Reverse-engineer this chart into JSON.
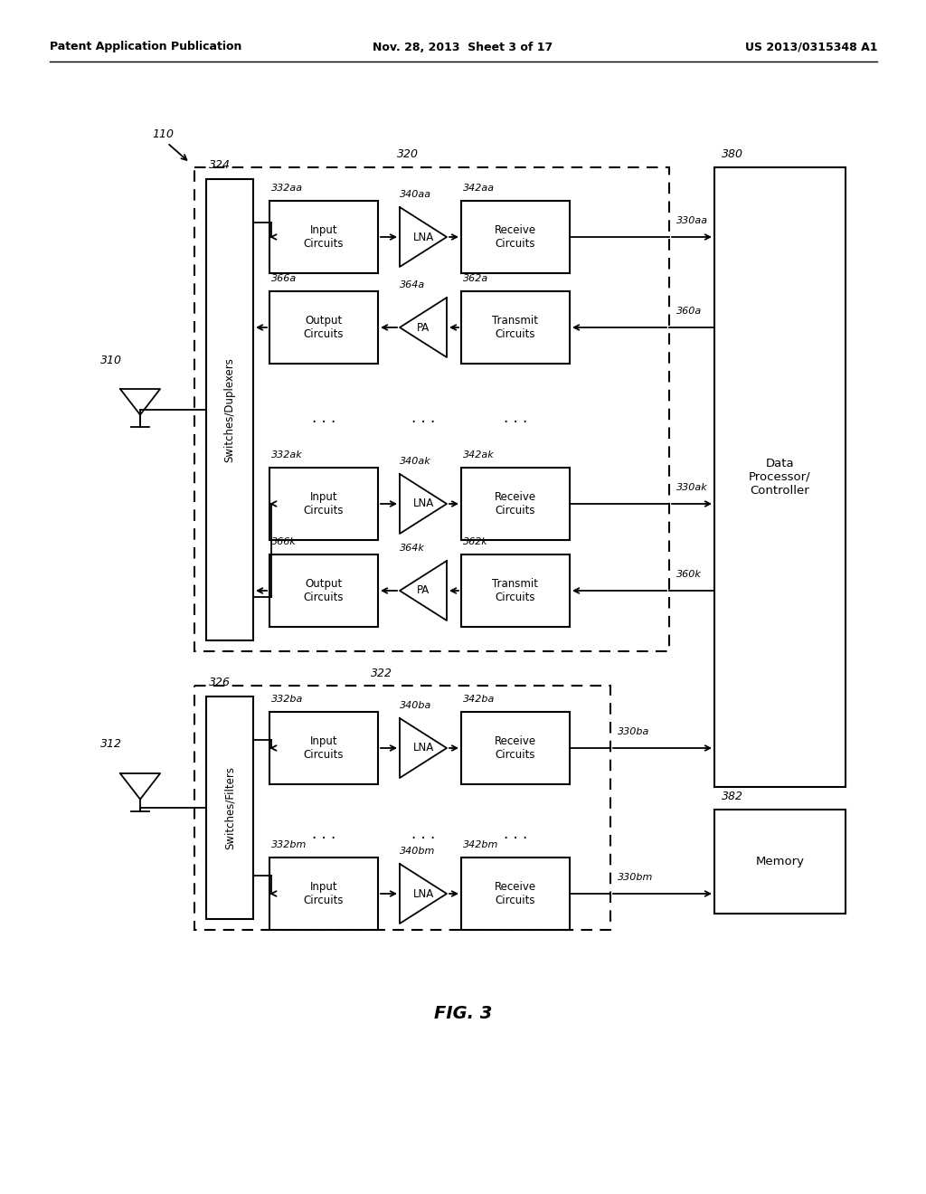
{
  "header_left": "Patent Application Publication",
  "header_mid": "Nov. 28, 2013  Sheet 3 of 17",
  "header_right": "US 2013/0315348 A1",
  "fig_label": "FIG. 3",
  "bg_color": "#ffffff",
  "line_color": "#000000",
  "box_fill": "#ffffff",
  "label_110": "110",
  "label_310": "310",
  "label_312": "312",
  "label_320": "320",
  "label_322": "322",
  "label_324": "324",
  "label_326": "326",
  "label_380": "380",
  "label_382": "382",
  "label_332aa": "332aa",
  "label_340aa": "340aa",
  "label_342aa": "342aa",
  "label_330aa": "330aa",
  "label_366a": "366a",
  "label_364a": "364a",
  "label_362a": "362a",
  "label_360a": "360a",
  "label_332ak": "332ak",
  "label_340ak": "340ak",
  "label_342ak": "342ak",
  "label_330ak": "330ak",
  "label_366k": "366k",
  "label_364k": "364k",
  "label_362k": "362k",
  "label_360k": "360k",
  "label_332ba": "332ba",
  "label_340ba": "340ba",
  "label_342ba": "342ba",
  "label_330ba": "330ba",
  "label_332bm": "332bm",
  "label_340bm": "340bm",
  "label_342bm": "342bm",
  "label_330bm": "330bm",
  "text_switches_dup": "Switches/Duplexers",
  "text_switches_fil": "Switches/Filters",
  "text_data_proc": "Data\nProcessor/\nController",
  "text_memory": "Memory",
  "text_input": "Input\nCircuits",
  "text_output": "Output\nCircuits",
  "text_transmit": "Transmit\nCircuits",
  "text_receive": "Receive\nCircuits",
  "text_lna": "LNA",
  "text_pa": "PA"
}
